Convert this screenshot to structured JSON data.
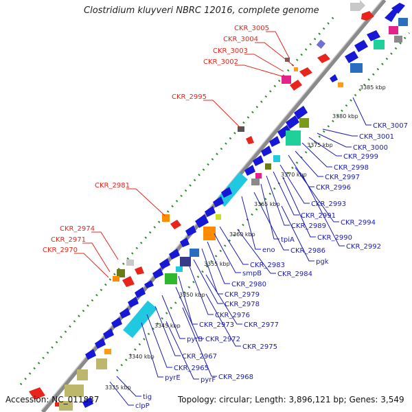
{
  "title": "Clostridium kluyveri NBRC 12016, complete genome",
  "footer": {
    "accession": "Accession: NC_011837",
    "summary": "Topology: circular; Length: 3,896,121 bp; Genes: 3,549"
  },
  "colors": {
    "forward_gene": "#e8241c",
    "reverse_gene": "#1717d6",
    "backbone": "#8a8a8a",
    "tick_dots": "#2e8b2e",
    "label_red": "#e8241c",
    "label_blue": "#1a1ab8"
  },
  "kbp_ticks": [
    "3335 kbp",
    "3340 kbp",
    "3345 kbp",
    "3350 kbp",
    "3355 kbp",
    "3360 kbp",
    "3365 kbp",
    "3370 kbp",
    "3375 kbp",
    "3380 kbp",
    "3385 kbp"
  ],
  "labels_forward": [
    "CKR_3005",
    "CKR_3004",
    "CKR_3003",
    "CKR_3002",
    "CKR_2995",
    "CKR_2981",
    "CKR_2974",
    "CKR_2971",
    "CKR_2970"
  ],
  "labels_reverse": [
    "CKR_3007",
    "CKR_3001",
    "CKR_3000",
    "CKR_2999",
    "CKR_2998",
    "CKR_2997",
    "CKR_2996",
    "CKR_2993",
    "CKR_2991",
    "CKR_2994",
    "CKR_2989",
    "CKR_2990",
    "CKR_2992",
    "tpiA",
    "CKR_2986",
    "eno",
    "pgk",
    "CKR_2983",
    "smpB",
    "CKR_2984",
    "CKR_2980",
    "CKR_2979",
    "CKR_2978",
    "CKR_2976",
    "CKR_2973",
    "CKR_2977",
    "pyrB",
    "CKR_2972",
    "CKR_2975",
    "CKR_2967",
    "CKR_2965",
    "pyrE",
    "pyrF",
    "CKR_2968",
    "tig",
    "clpP"
  ]
}
